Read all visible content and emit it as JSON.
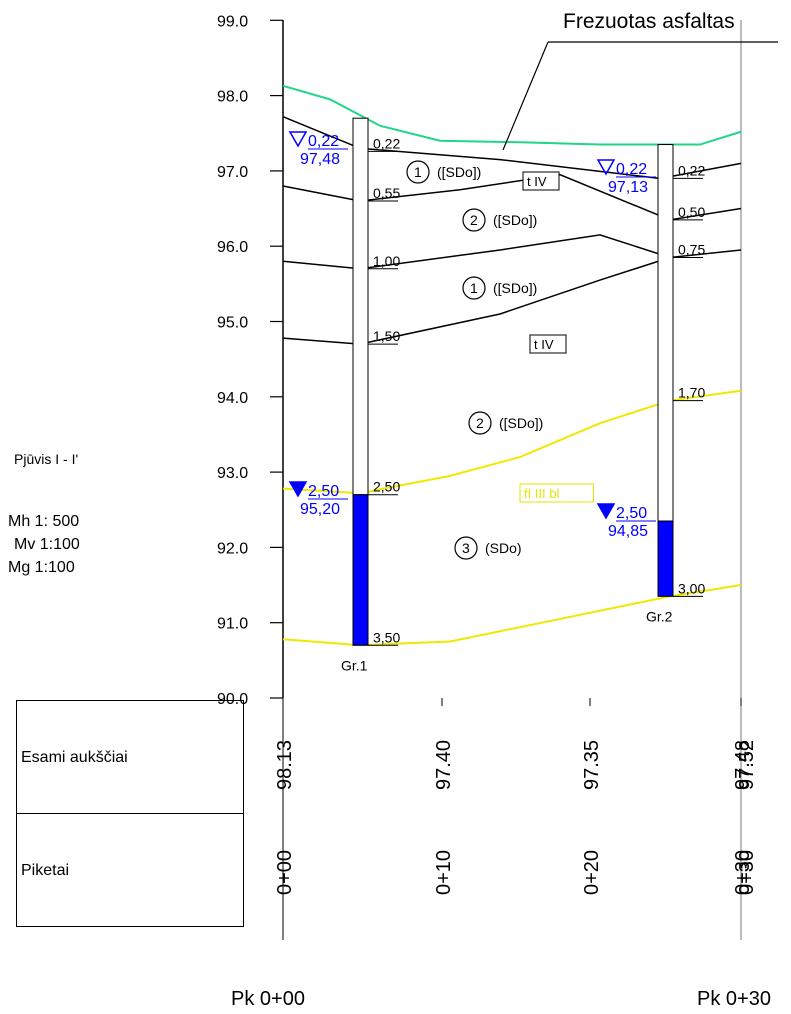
{
  "title": "Frezuotas asfaltas",
  "section": {
    "name": "Pjūvis I - I'",
    "mh": "Mh  1: 500",
    "mv": "Mv   1:100",
    "mg": "Mg   1:100"
  },
  "y_ticks": [
    "99.0",
    "98.0",
    "97.0",
    "96.0",
    "95.0",
    "94.0",
    "93.0",
    "92.0",
    "91.0",
    "90.0"
  ],
  "boreholes": [
    {
      "name": "Gr.1",
      "x": 0,
      "top_elevation": 97.7,
      "bottom_elevation": 90.7,
      "water_top": 92.7,
      "depth_labels": [
        {
          "text": "0,22",
          "elevation": 97.26
        },
        {
          "text": "0,55",
          "elevation": 96.6
        },
        {
          "text": "1,00",
          "elevation": 95.7
        },
        {
          "text": "1,50",
          "elevation": 94.7
        },
        {
          "text": "2,50",
          "elevation": 92.7
        },
        {
          "text": "3,50",
          "elevation": 90.7
        }
      ],
      "water_marks": [
        {
          "depth": "0,22",
          "elev": "97,48",
          "type": "open"
        },
        {
          "depth": "2,50",
          "elev": "95,20",
          "type": "filled"
        }
      ]
    },
    {
      "name": "Gr.2",
      "x": 1,
      "top_elevation": 97.35,
      "bottom_elevation": 91.35,
      "water_top": 92.35,
      "depth_labels": [
        {
          "text": "0,22",
          "elevation": 96.9
        },
        {
          "text": "0,50",
          "elevation": 96.35
        },
        {
          "text": "0,75",
          "elevation": 95.85
        },
        {
          "text": "1,70",
          "elevation": 93.95
        },
        {
          "text": "3,00",
          "elevation": 91.35
        }
      ],
      "water_marks": [
        {
          "depth": "0,22",
          "elev": "97,13",
          "type": "open"
        },
        {
          "depth": "2,50",
          "elev": "94,85",
          "type": "filled"
        }
      ]
    }
  ],
  "soil_labels": [
    {
      "num": "1",
      "text": "([SDo])"
    },
    {
      "num": "2",
      "text": "([SDo])"
    },
    {
      "num": "1",
      "text": "([SDo])"
    },
    {
      "num": "2",
      "text": "([SDo])"
    },
    {
      "num": "3",
      "text": "(SDo)"
    }
  ],
  "strata_tags": [
    {
      "text": "t IV",
      "color": "#000000"
    },
    {
      "text": "t IV",
      "color": "#000000"
    },
    {
      "text": "fI III bl",
      "color": "#e6e600"
    }
  ],
  "table": {
    "row1_label": "Esami aukščiai",
    "row2_label": "Piketai",
    "elevations": [
      "98.13",
      "97.40",
      "97.35",
      "97.48",
      "97.52"
    ],
    "stations": [
      "0+00",
      "0+10",
      "0+20",
      "0+30",
      "0+30"
    ]
  },
  "footer": {
    "left": "Pk 0+00",
    "right": "Pk 0+30"
  },
  "colors": {
    "ground": "#1fd68a",
    "fill_layer": "#f0e800",
    "water": "#0000ff",
    "line": "#000000"
  }
}
